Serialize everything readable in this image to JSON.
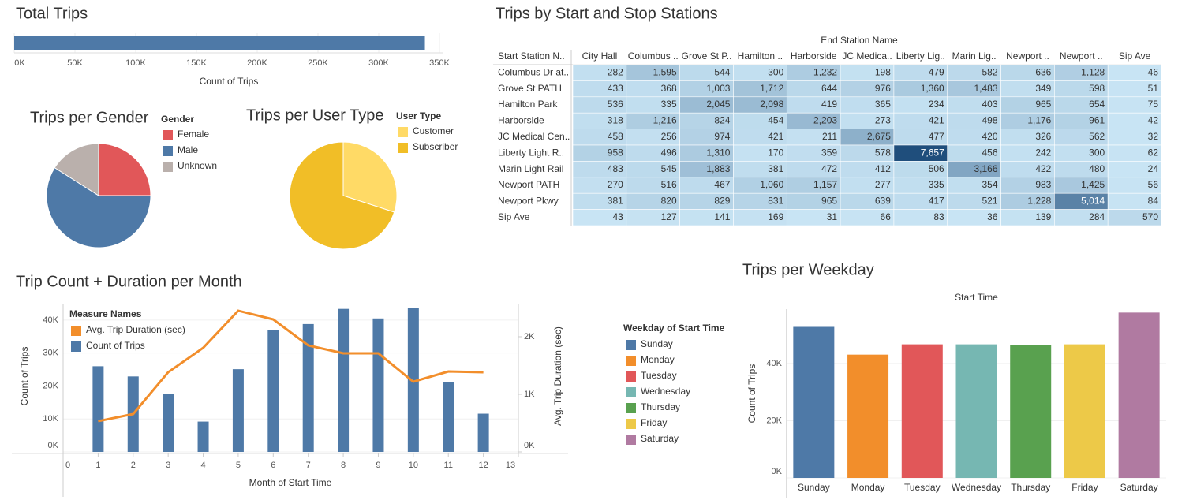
{
  "chart_data": [
    {
      "type": "bar",
      "orientation": "horizontal",
      "title": "Total Trips",
      "xlabel": "Count of Trips",
      "values": [
        338000
      ],
      "color": "#4e79a7",
      "xlim": [
        0,
        350000
      ],
      "xticks": [
        {
          "value": 0,
          "label": "0K"
        },
        {
          "value": 50000,
          "label": "50K"
        },
        {
          "value": 100000,
          "label": "100K"
        },
        {
          "value": 150000,
          "label": "150K"
        },
        {
          "value": 200000,
          "label": "200K"
        },
        {
          "value": 250000,
          "label": "250K"
        },
        {
          "value": 300000,
          "label": "300K"
        },
        {
          "value": 350000,
          "label": "350K"
        }
      ],
      "grid": true
    },
    {
      "type": "pie",
      "title": "Trips per Gender",
      "legend_title": "Gender",
      "categories": [
        "Female",
        "Male",
        "Unknown"
      ],
      "values": [
        25,
        59,
        16
      ],
      "colors": [
        "#e15759",
        "#4e79a7",
        "#bab0ac"
      ]
    },
    {
      "type": "pie",
      "title": "Trips per User Type",
      "legend_title": "User Type",
      "categories": [
        "Customer",
        "Subscriber"
      ],
      "values": [
        30,
        70
      ],
      "colors": [
        "#ffda66",
        "#f1be27"
      ]
    },
    {
      "type": "heatmap",
      "title": "Trips by Start and Stop Stations",
      "x_title": "End Station Name",
      "y_title": "Start Station N..",
      "columns": [
        "City Hall",
        "Columbus ..",
        "Grove St P..",
        "Hamilton ..",
        "Harborside",
        "JC Medica..",
        "Liberty Lig..",
        "Marin Lig..",
        "Newport ..",
        "Newport ..",
        "Sip Ave"
      ],
      "rows": [
        "Columbus Dr at..",
        "Grove St PATH",
        "Hamilton Park",
        "Harborside",
        "JC Medical Cen..",
        "Liberty Light R..",
        "Marin Light Rail",
        "Newport PATH",
        "Newport Pkwy",
        "Sip Ave"
      ],
      "values": [
        [
          282,
          1595,
          544,
          300,
          1232,
          198,
          479,
          582,
          636,
          1128,
          46
        ],
        [
          433,
          368,
          1003,
          1712,
          644,
          976,
          1360,
          1483,
          349,
          598,
          51
        ],
        [
          536,
          335,
          2045,
          2098,
          419,
          365,
          234,
          403,
          965,
          654,
          75
        ],
        [
          318,
          1216,
          824,
          454,
          2203,
          273,
          421,
          498,
          1176,
          961,
          42
        ],
        [
          458,
          256,
          974,
          421,
          211,
          2675,
          477,
          420,
          326,
          562,
          32
        ],
        [
          958,
          496,
          1310,
          170,
          359,
          578,
          7657,
          456,
          242,
          300,
          62
        ],
        [
          483,
          545,
          1883,
          381,
          472,
          412,
          506,
          3166,
          422,
          480,
          24
        ],
        [
          270,
          516,
          467,
          1060,
          1157,
          277,
          335,
          354,
          983,
          1425,
          56
        ],
        [
          381,
          820,
          829,
          831,
          965,
          639,
          417,
          521,
          1228,
          5014,
          84
        ],
        [
          43,
          127,
          141,
          169,
          31,
          66,
          83,
          36,
          139,
          284,
          570
        ]
      ],
      "value_labels": [
        [
          "282",
          "1,595",
          "544",
          "300",
          "1,232",
          "198",
          "479",
          "582",
          "636",
          "1,128",
          "46"
        ],
        [
          "433",
          "368",
          "1,003",
          "1,712",
          "644",
          "976",
          "1,360",
          "1,483",
          "349",
          "598",
          "51"
        ],
        [
          "536",
          "335",
          "2,045",
          "2,098",
          "419",
          "365",
          "234",
          "403",
          "965",
          "654",
          "75"
        ],
        [
          "318",
          "1,216",
          "824",
          "454",
          "2,203",
          "273",
          "421",
          "498",
          "1,176",
          "961",
          "42"
        ],
        [
          "458",
          "256",
          "974",
          "421",
          "211",
          "2,675",
          "477",
          "420",
          "326",
          "562",
          "32"
        ],
        [
          "958",
          "496",
          "1,310",
          "170",
          "359",
          "578",
          "7,657",
          "456",
          "242",
          "300",
          "62"
        ],
        [
          "483",
          "545",
          "1,883",
          "381",
          "472",
          "412",
          "506",
          "3,166",
          "422",
          "480",
          "24"
        ],
        [
          "270",
          "516",
          "467",
          "1,060",
          "1,157",
          "277",
          "335",
          "354",
          "983",
          "1,425",
          "56"
        ],
        [
          "381",
          "820",
          "829",
          "831",
          "965",
          "639",
          "417",
          "521",
          "1,228",
          "5,014",
          "84"
        ],
        [
          "43",
          "127",
          "141",
          "169",
          "31",
          "66",
          "83",
          "36",
          "139",
          "284",
          "570"
        ]
      ],
      "color_low": "#c8e4f4",
      "color_high": "#1f4e7c"
    },
    {
      "type": "combo",
      "title": "Trip Count + Duration per Month",
      "xlabel": "Month of Start Time",
      "ylabel": "Count of Trips",
      "y2label": "Avg. Trip Duration (sec)",
      "legend_title": "Measure Names",
      "x": [
        1,
        2,
        3,
        4,
        5,
        6,
        7,
        8,
        9,
        10,
        11,
        12
      ],
      "series": [
        {
          "name": "Avg. Trip Duration (sec)",
          "color": "#f28e2b",
          "mark": "line",
          "axis": "y2",
          "values": [
            534,
            658,
            1384,
            1808,
            2452,
            2301,
            1849,
            1712,
            1712,
            1219,
            1397,
            1384
          ]
        },
        {
          "name": "Count of Trips",
          "color": "#4e79a7",
          "mark": "bar",
          "values": [
            26000,
            22900,
            17600,
            9200,
            25100,
            36900,
            38800,
            43400,
            40500,
            43600,
            21200,
            11600
          ]
        }
      ],
      "xlim": [
        0,
        13
      ],
      "xticks": [
        0,
        1,
        2,
        3,
        4,
        5,
        6,
        7,
        8,
        9,
        10,
        11,
        12,
        13
      ],
      "ylim": [
        0,
        45000
      ],
      "yticks": [
        {
          "value": 0,
          "label": "0K"
        },
        {
          "value": 10000,
          "label": "10K"
        },
        {
          "value": 20000,
          "label": "20K"
        },
        {
          "value": 30000,
          "label": "30K"
        },
        {
          "value": 40000,
          "label": "40K"
        }
      ],
      "y2lim": [
        0,
        2575
      ],
      "y2ticks": [
        {
          "value": 0,
          "label": "0K"
        },
        {
          "value": 1000,
          "label": "1K"
        },
        {
          "value": 2000,
          "label": "2K"
        }
      ],
      "grid": true
    },
    {
      "type": "bar",
      "orientation": "vertical",
      "title": "Trips per Weekday",
      "x_title": "Start Time",
      "ylabel": "Count of Trips",
      "legend_title": "Weekday of Start Time",
      "categories": [
        "Sunday",
        "Monday",
        "Tuesday",
        "Wednesday",
        "Thursday",
        "Friday",
        "Saturday"
      ],
      "values": [
        52800,
        43100,
        46700,
        46700,
        46400,
        46700,
        57800
      ],
      "colors": [
        "#4e79a7",
        "#f28e2b",
        "#e15759",
        "#76b7b2",
        "#59a14f",
        "#edc948",
        "#b07aa1"
      ],
      "ylim": [
        0,
        59000
      ],
      "yticks": [
        {
          "value": 0,
          "label": "0K"
        },
        {
          "value": 20000,
          "label": "20K"
        },
        {
          "value": 40000,
          "label": "40K"
        }
      ],
      "grid": true
    }
  ]
}
